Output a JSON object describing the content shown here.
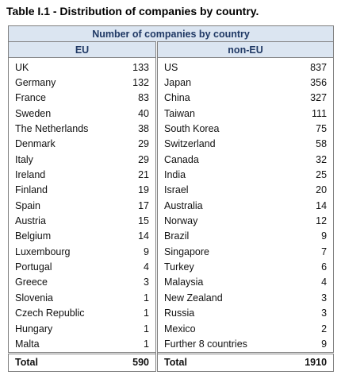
{
  "title": "Table I.1 - Distribution of companies by country.",
  "table": {
    "header": "Number of companies by country",
    "columns": [
      "EU",
      "non-EU"
    ],
    "rows": [
      [
        "UK",
        133,
        "US",
        837
      ],
      [
        "Germany",
        132,
        "Japan",
        356
      ],
      [
        "France",
        83,
        "China",
        327
      ],
      [
        "Sweden",
        40,
        "Taiwan",
        111
      ],
      [
        "The Netherlands",
        38,
        "South Korea",
        75
      ],
      [
        "Denmark",
        29,
        "Switzerland",
        58
      ],
      [
        "Italy",
        29,
        "Canada",
        32
      ],
      [
        "Ireland",
        21,
        "India",
        25
      ],
      [
        "Finland",
        19,
        "Israel",
        20
      ],
      [
        "Spain",
        17,
        "Australia",
        14
      ],
      [
        "Austria",
        15,
        "Norway",
        12
      ],
      [
        "Belgium",
        14,
        "Brazil",
        9
      ],
      [
        "Luxembourg",
        9,
        "Singapore",
        7
      ],
      [
        "Portugal",
        4,
        "Turkey",
        6
      ],
      [
        "Greece",
        3,
        "Malaysia",
        4
      ],
      [
        "Slovenia",
        1,
        "New Zealand",
        3
      ],
      [
        "Czech Republic",
        1,
        "Russia",
        3
      ],
      [
        "Hungary",
        1,
        "Mexico",
        2
      ],
      [
        "Malta",
        1,
        "Further 8 countries",
        9
      ]
    ],
    "total": [
      "Total",
      590,
      "Total",
      1910
    ]
  }
}
